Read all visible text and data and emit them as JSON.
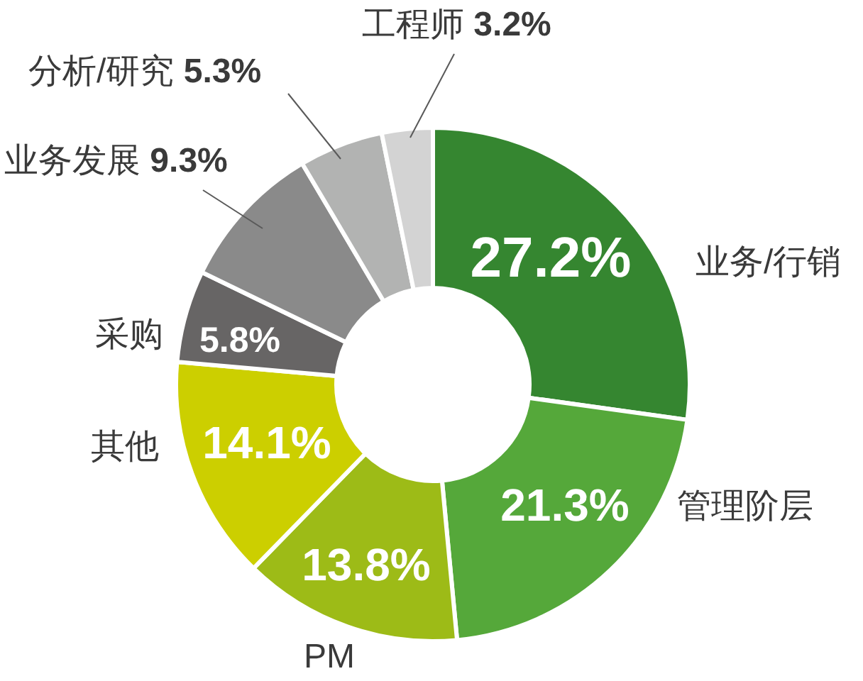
{
  "chart_data": {
    "type": "donut",
    "categories": [
      "业务/行销",
      "管理阶层",
      "PM",
      "其他",
      "采购",
      "业务发展",
      "分析/研究",
      "工程师"
    ],
    "values": [
      27.2,
      21.3,
      13.8,
      14.1,
      5.8,
      9.3,
      5.3,
      3.2
    ],
    "colors": [
      "#358630",
      "#55a83a",
      "#9dbb17",
      "#cccf00",
      "#676565",
      "#8a8a8a",
      "#b2b3b2",
      "#d3d3d3"
    ],
    "value_labels": [
      "27.2%",
      "21.3%",
      "13.8%",
      "14.1%",
      "5.8%",
      "9.3%",
      "5.3%",
      "3.2%"
    ]
  }
}
